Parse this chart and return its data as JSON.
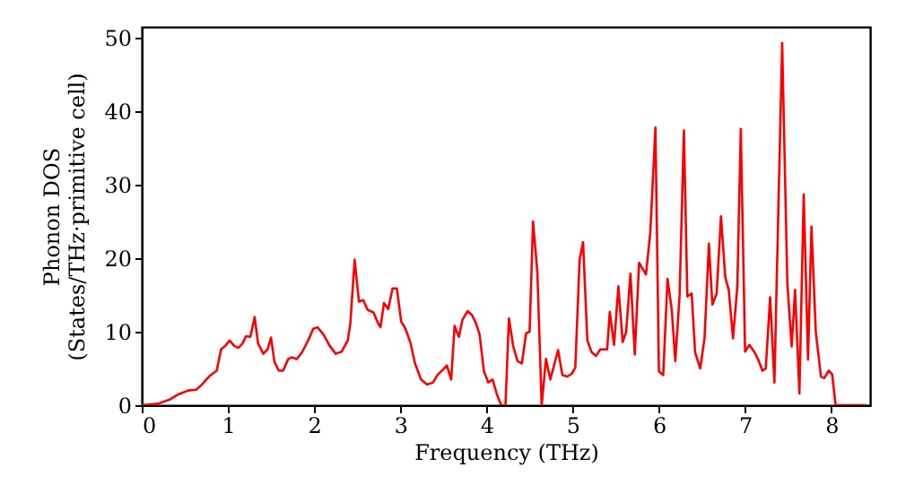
{
  "chart_data": {
    "type": "line",
    "xlabel": "Frequency (THz)",
    "ylabel": "Phonon DOS\n(States/THz·primitive cell)",
    "x": [
      0,
      0.19,
      0.33,
      0.43,
      0.54,
      0.63,
      0.69,
      0.78,
      0.87,
      0.92,
      0.97,
      1.02,
      1.07,
      1.12,
      1.17,
      1.21,
      1.26,
      1.31,
      1.35,
      1.41,
      1.46,
      1.5,
      1.54,
      1.59,
      1.64,
      1.7,
      1.74,
      1.8,
      1.86,
      1.93,
      1.99,
      2.04,
      2.11,
      2.18,
      2.25,
      2.32,
      2.39,
      2.42,
      2.47,
      2.52,
      2.57,
      2.62,
      2.69,
      2.74,
      2.77,
      2.81,
      2.86,
      2.91,
      2.96,
      3.01,
      3.06,
      3.12,
      3.17,
      3.24,
      3.31,
      3.38,
      3.43,
      3.5,
      3.54,
      3.59,
      3.63,
      3.68,
      3.72,
      3.78,
      3.83,
      3.88,
      3.92,
      3.97,
      4.02,
      4.07,
      4.12,
      4.17,
      4.22,
      4.26,
      4.31,
      4.36,
      4.41,
      4.46,
      4.5,
      4.54,
      4.59,
      4.64,
      4.69,
      4.74,
      4.79,
      4.83,
      4.88,
      4.94,
      4.99,
      5.03,
      5.08,
      5.12,
      5.17,
      5.22,
      5.27,
      5.32,
      5.4,
      5.43,
      5.48,
      5.53,
      5.58,
      5.62,
      5.67,
      5.72,
      5.77,
      5.81,
      5.85,
      5.9,
      5.96,
      6.0,
      6.05,
      6.1,
      6.15,
      6.19,
      6.24,
      6.29,
      6.33,
      6.38,
      6.42,
      6.48,
      6.53,
      6.58,
      6.62,
      6.67,
      6.72,
      6.77,
      6.81,
      6.86,
      6.91,
      6.95,
      7.0,
      7.05,
      7.11,
      7.16,
      7.2,
      7.24,
      7.29,
      7.34,
      7.43,
      7.49,
      7.54,
      7.58,
      7.63,
      7.68,
      7.73,
      7.77,
      7.82,
      7.88,
      7.92,
      7.97,
      8.01,
      8.05,
      8.41
    ],
    "series": [
      {
        "color": "#ff0000",
        "values": [
          0,
          0.2,
          0.8,
          1.5,
          2,
          2.1,
          2.7,
          3.9,
          4.7,
          7.6,
          8.1,
          8.8,
          8.1,
          7.8,
          8.4,
          9.4,
          9.3,
          12,
          8.4,
          7,
          7.6,
          9.2,
          5.9,
          4.7,
          4.7,
          6.3,
          6.5,
          6.3,
          7.2,
          8.8,
          10.4,
          10.6,
          9.6,
          8.1,
          7,
          7.3,
          8.8,
          11.1,
          19.8,
          14.1,
          14.3,
          13,
          12.6,
          11.2,
          10.6,
          13.9,
          13.1,
          15.9,
          15.9,
          11.4,
          10.4,
          8.4,
          5.7,
          3.5,
          2.8,
          3.1,
          4.1,
          4.9,
          5.4,
          3.5,
          10.8,
          9.3,
          11.6,
          12.8,
          12.3,
          11.1,
          9.6,
          4.6,
          3.1,
          3.5,
          1.5,
          0,
          0,
          11.8,
          8,
          6,
          5.7,
          9.8,
          10,
          25,
          18.1,
          0,
          6.3,
          3.5,
          5.7,
          7.5,
          4.1,
          3.9,
          4.3,
          5.1,
          19.8,
          22.2,
          8.8,
          7.2,
          6.7,
          7.6,
          7.6,
          12.7,
          8.2,
          16.2,
          8.6,
          10,
          17.9,
          6.9,
          19.4,
          18.6,
          17.8,
          23.5,
          37.8,
          4.6,
          4.1,
          17.2,
          12.9,
          6,
          14.9,
          37.4,
          14.8,
          15.2,
          7.2,
          5,
          9.2,
          22,
          13.7,
          15.2,
          25.7,
          17.4,
          15.7,
          9.1,
          16.2,
          37.6,
          7.3,
          8.2,
          7.2,
          6,
          4.7,
          5,
          14.7,
          3.1,
          49.3,
          16.6,
          8,
          15.7,
          1.6,
          28.7,
          6.2,
          24.3,
          10,
          3.9,
          3.7,
          4.7,
          4.2,
          0,
          0
        ]
      }
    ],
    "xlim": [
      0,
      8.45
    ],
    "xticks": [
      0,
      1,
      2,
      3,
      4,
      5,
      6,
      7,
      8
    ],
    "ylim": [
      0,
      51.5
    ],
    "yticks": [
      0,
      10,
      20,
      30,
      40,
      50
    ],
    "grid": false,
    "marker": "none",
    "line_style": "solid"
  }
}
